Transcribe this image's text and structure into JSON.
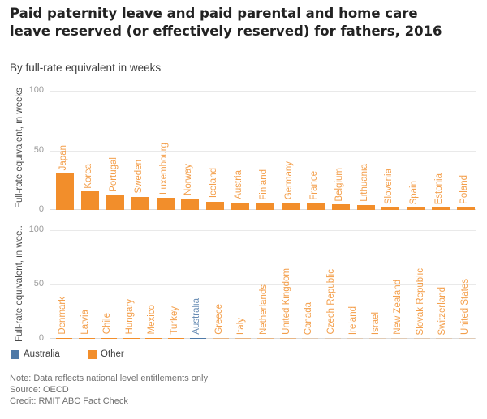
{
  "header": {
    "title": "Paid paternity leave and paid parental and home care leave reserved (or effectively reserved) for fathers, 2016",
    "subtitle": "By full-rate equivalent in weeks"
  },
  "colors": {
    "australia": "#4E79A7",
    "other": "#F28E2B",
    "grid": "#e9e9e9",
    "baseline": "#dcdcdc",
    "axis_text": "#9b9b9b"
  },
  "chart_data": [
    {
      "type": "bar",
      "panel": "top",
      "ylabel": "Full-rate equivalent, in weeks",
      "yticks": [
        0,
        50,
        100
      ],
      "ylim": [
        0,
        100
      ],
      "grid": true,
      "sort": "descending",
      "highlight": "Australia",
      "categories": [
        "Japan",
        "Korea",
        "Portugal",
        "Sweden",
        "Luxembourg",
        "Norway",
        "Iceland",
        "Austria",
        "Finland",
        "Germany",
        "France",
        "Belgium",
        "Lithuania",
        "Slovenia",
        "Spain",
        "Estonia",
        "Poland"
      ],
      "values": [
        30.4,
        15.4,
        12.5,
        10.9,
        10.4,
        9.4,
        7.1,
        6.0,
        5.7,
        5.7,
        5.4,
        4.7,
        4.0,
        2.1,
        2.1,
        2.0,
        2.0
      ]
    },
    {
      "type": "bar",
      "panel": "bottom",
      "ylabel": "Full-rate equivalent, in wee..",
      "yticks": [
        0,
        50,
        100
      ],
      "ylim": [
        0,
        100
      ],
      "grid": true,
      "sort": "descending",
      "highlight": "Australia",
      "categories": [
        "Denmark",
        "Latvia",
        "Chile",
        "Hungary",
        "Mexico",
        "Turkey",
        "Australia",
        "Greece",
        "Italy",
        "Netherlands",
        "United Kingdom",
        "Canada",
        "Czech Republic",
        "Ireland",
        "Israel",
        "New Zealand",
        "Slovak Republic",
        "Switzerland",
        "United States"
      ],
      "values": [
        1.1,
        1.1,
        1.0,
        1.0,
        1.0,
        1.0,
        0.8,
        0.4,
        0.4,
        0.4,
        0.4,
        0,
        0,
        0,
        0,
        0,
        0,
        0,
        0
      ]
    }
  ],
  "legend": [
    {
      "label": "Australia",
      "color": "#4E79A7"
    },
    {
      "label": "Other",
      "color": "#F28E2B"
    }
  ],
  "footer": {
    "note": "Note: Data reflects national level entitlements only",
    "source": "Source: OECD",
    "credit": "Credit: RMIT ABC Fact Check"
  }
}
